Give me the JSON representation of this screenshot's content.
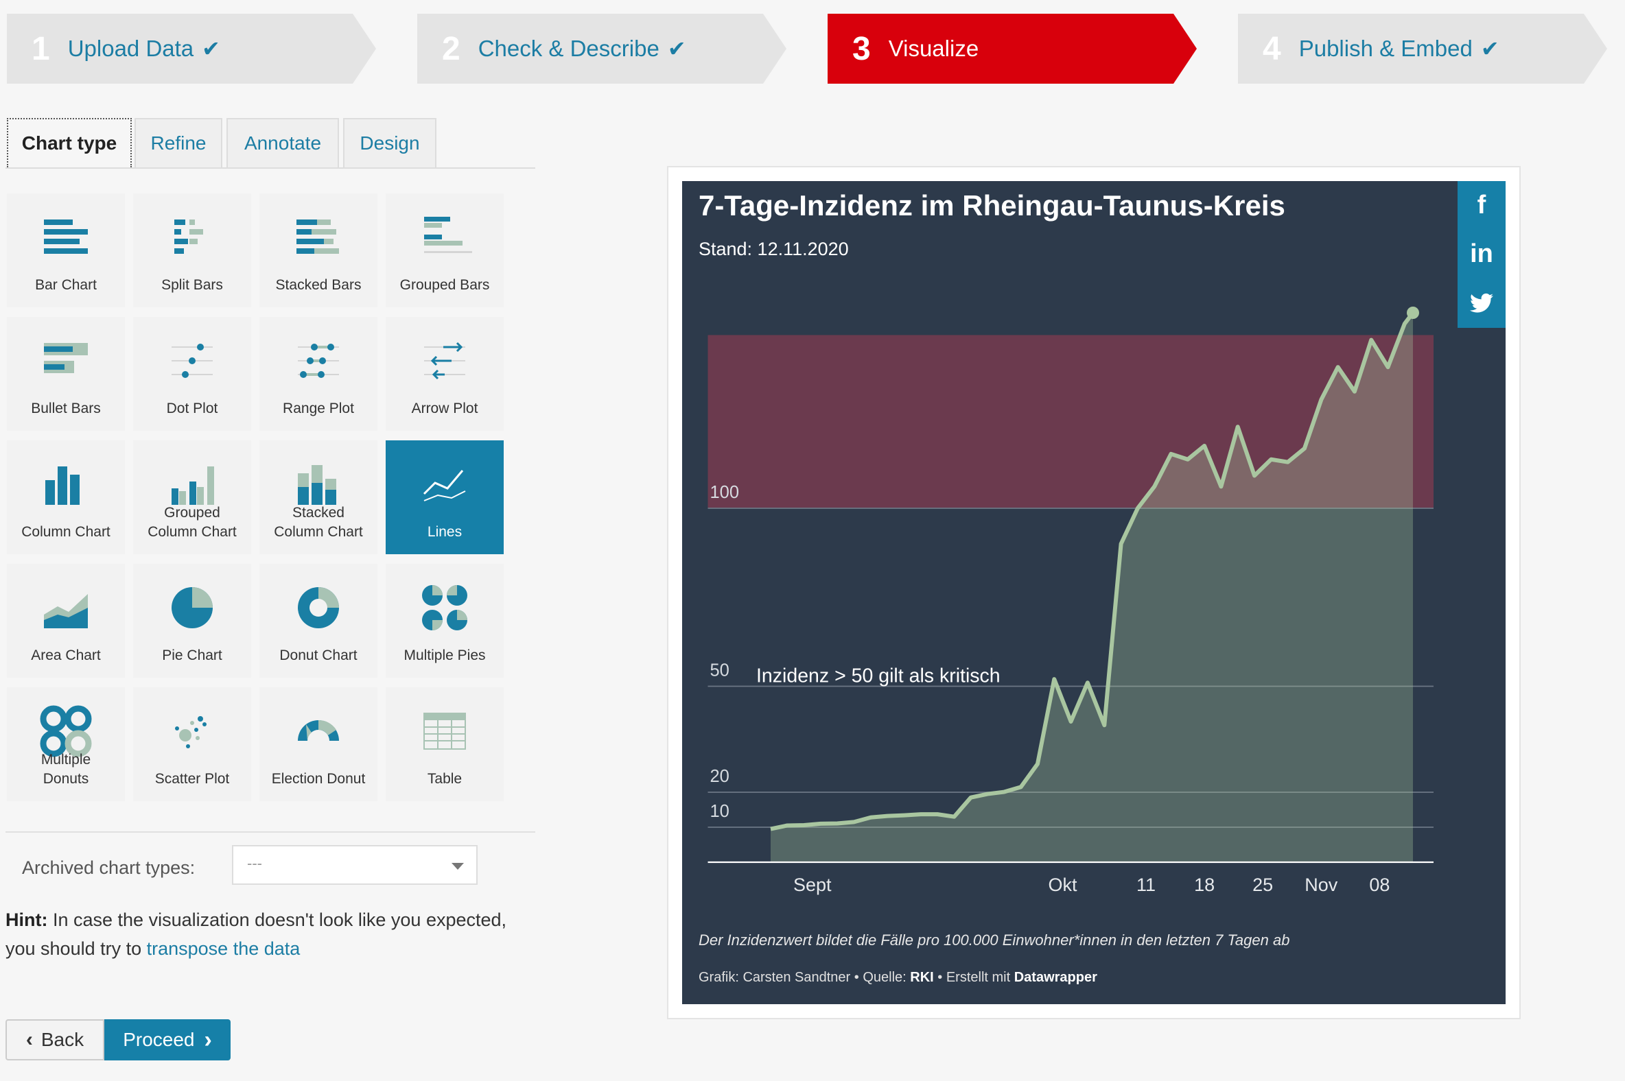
{
  "steps": [
    {
      "num": "1",
      "label": "Upload Data",
      "check": "✔"
    },
    {
      "num": "2",
      "label": "Check & Describe",
      "check": "✔"
    },
    {
      "num": "3",
      "label": "Visualize",
      "check": ""
    },
    {
      "num": "4",
      "label": "Publish & Embed",
      "check": "✔"
    }
  ],
  "tabs": [
    "Chart type",
    "Refine",
    "Annotate",
    "Design"
  ],
  "chart_types": [
    {
      "name": "Bar Chart",
      "icon": "bar-chart-icon"
    },
    {
      "name": "Split Bars",
      "icon": "split-bars-icon"
    },
    {
      "name": "Stacked Bars",
      "icon": "stacked-bars-icon"
    },
    {
      "name": "Grouped Bars",
      "icon": "grouped-bars-icon"
    },
    {
      "name": "Bullet Bars",
      "icon": "bullet-bars-icon"
    },
    {
      "name": "Dot Plot",
      "icon": "dot-plot-icon"
    },
    {
      "name": "Range Plot",
      "icon": "range-plot-icon"
    },
    {
      "name": "Arrow Plot",
      "icon": "arrow-plot-icon"
    },
    {
      "name": "Column Chart",
      "icon": "column-chart-icon"
    },
    {
      "name": "Grouped\nColumn Chart",
      "icon": "grouped-column-chart-icon"
    },
    {
      "name": "Stacked\nColumn Chart",
      "icon": "stacked-column-chart-icon"
    },
    {
      "name": "Lines",
      "icon": "lines-icon"
    },
    {
      "name": "Area Chart",
      "icon": "area-chart-icon"
    },
    {
      "name": "Pie Chart",
      "icon": "pie-chart-icon"
    },
    {
      "name": "Donut Chart",
      "icon": "donut-chart-icon"
    },
    {
      "name": "Multiple Pies",
      "icon": "multiple-pies-icon"
    },
    {
      "name": "Multiple\nDonuts",
      "icon": "multiple-donuts-icon"
    },
    {
      "name": "Scatter Plot",
      "icon": "scatter-plot-icon"
    },
    {
      "name": "Election Donut",
      "icon": "election-donut-icon"
    },
    {
      "name": "Table",
      "icon": "table-icon"
    }
  ],
  "selected_chart_type": "Lines",
  "archived": {
    "label": "Archived chart types:",
    "value": "---"
  },
  "hint": {
    "bold": "Hint:",
    "text": " In case the visualization doesn't look like you expected, you should try to ",
    "link": "transpose the data"
  },
  "buttons": {
    "back": "Back",
    "proceed": "Proceed"
  },
  "colors": {
    "accent": "#1680a8",
    "active_step": "#d8000c",
    "chart_bg": "#2d3a4b",
    "danger_zone": "#6b3a4e",
    "line": "#a9c6a0"
  },
  "social": [
    "f",
    "in",
    "twitter-icon"
  ],
  "chart_data": {
    "type": "line",
    "title": "7-Tage-Inzidenz im Rheingau-Taunus-Kreis",
    "subtitle": "Stand: 12.11.2020",
    "note": "Der Inzidenzwert bildet die Fälle pro 100.000 Einwohner*innen in den letzten 7 Tagen ab",
    "footer": {
      "prefix": "Grafik: Carsten Sandtner • Quelle: ",
      "source": "RKI",
      "mid": " • Erstellt mit ",
      "tool": "Datawrapper"
    },
    "annotation": "Inzidenz > 50 gilt als kritisch",
    "yticks": [
      10,
      20,
      50,
      100
    ],
    "xticks": [
      "Sept",
      "Okt",
      "11",
      "18",
      "25",
      "Nov",
      "08"
    ],
    "y_scale": "non-linear (piecewise)",
    "highlight_range": [
      100,
      160
    ],
    "series": [
      {
        "x": [
          "2020-08-27",
          "2020-08-29",
          "2020-08-31",
          "2020-09-02",
          "2020-09-04",
          "2020-09-06",
          "2020-09-08",
          "2020-09-10",
          "2020-09-12",
          "2020-09-14",
          "2020-09-16",
          "2020-09-18",
          "2020-09-20",
          "2020-09-22",
          "2020-09-24",
          "2020-09-26",
          "2020-09-28",
          "2020-09-30",
          "2020-10-02",
          "2020-10-04",
          "2020-10-06",
          "2020-10-08",
          "2020-10-10",
          "2020-10-12",
          "2020-10-14",
          "2020-10-16",
          "2020-10-18",
          "2020-10-20",
          "2020-10-22",
          "2020-10-24",
          "2020-10-26",
          "2020-10-28",
          "2020-10-30",
          "2020-11-01",
          "2020-11-03",
          "2020-11-05",
          "2020-11-07",
          "2020-11-09",
          "2020-11-11",
          "2020-11-12"
        ],
        "y": [
          9.5,
          10.5,
          10.6,
          11,
          11.1,
          11.5,
          12.8,
          13.2,
          13.4,
          13.7,
          13.7,
          13,
          18.5,
          19.5,
          20.1,
          21.5,
          28,
          52,
          40,
          51,
          39,
          90,
          100,
          108,
          120,
          118,
          123,
          108,
          130,
          112,
          118,
          117,
          122,
          140,
          152,
          143,
          162,
          152,
          168,
          172
        ]
      }
    ]
  }
}
